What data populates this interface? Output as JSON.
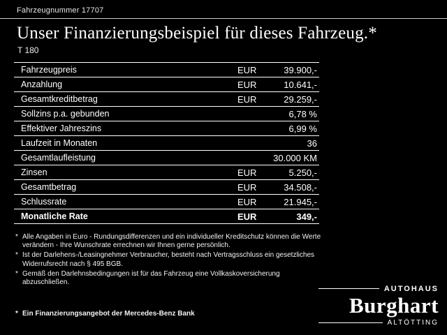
{
  "header": {
    "vehicle_number": "Fahrzeugnummer 17707",
    "title": "Unser Finanzierungsbeispiel für dieses Fahrzeug.*",
    "model": "T 180"
  },
  "table": {
    "rows": [
      {
        "label": "Fahrzeugpreis",
        "currency": "EUR",
        "value": "39.900,-",
        "bold": false
      },
      {
        "label": "Anzahlung",
        "currency": "EUR",
        "value": "10.641,-",
        "bold": false
      },
      {
        "label": "Gesamtkreditbetrag",
        "currency": "EUR",
        "value": "29.259,-",
        "bold": false
      },
      {
        "label": "Sollzins p.a. gebunden",
        "currency": "",
        "value": "6,78 %",
        "bold": false
      },
      {
        "label": "Effektiver Jahreszins",
        "currency": "",
        "value": "6,99 %",
        "bold": false
      },
      {
        "label": "Laufzeit in Monaten",
        "currency": "",
        "value": "36",
        "bold": false
      },
      {
        "label": "Gesamtlaufleistung",
        "currency": "",
        "value": "30.000 KM",
        "bold": false
      },
      {
        "label": "Zinsen",
        "currency": "EUR",
        "value": "5.250,-",
        "bold": false
      },
      {
        "label": "Gesamtbetrag",
        "currency": "EUR",
        "value": "34.508,-",
        "bold": false
      },
      {
        "label": "Schlussrate",
        "currency": "EUR",
        "value": "21.945,-",
        "bold": false
      },
      {
        "label": "Monatliche Rate",
        "currency": "EUR",
        "value": "349,-",
        "bold": true
      }
    ]
  },
  "footnotes": [
    {
      "marker": "*",
      "text": "Alle Angaben in Euro - Rundungsdifferenzen und ein individueller Kreditschutz können die Werte verändern - Ihre Wunschrate errechnen wir Ihnen gerne persönlich.",
      "bold": false
    },
    {
      "marker": "*",
      "text": "Ist der Darlehens-/Leasingnehmer Verbraucher, besteht nach Vertragsschluss ein gesetzliches Widerrufsrecht nach § 495 BGB.",
      "bold": false
    },
    {
      "marker": "*",
      "text": "Gemäß den Darlehnsbedingungen ist für das Fahrzeug eine Vollkaskoversicherung abzuschließen.",
      "bold": false
    },
    {
      "marker": "*",
      "text": "Ein Finanzierungsangebot der Mercedes-Benz Bank",
      "bold": true
    }
  ],
  "logo": {
    "top": "AUTOHAUS",
    "name": "Burghart",
    "bottom": "ALTÖTTING"
  },
  "colors": {
    "background": "#000000",
    "text": "#ffffff",
    "rule": "#ffffff"
  }
}
